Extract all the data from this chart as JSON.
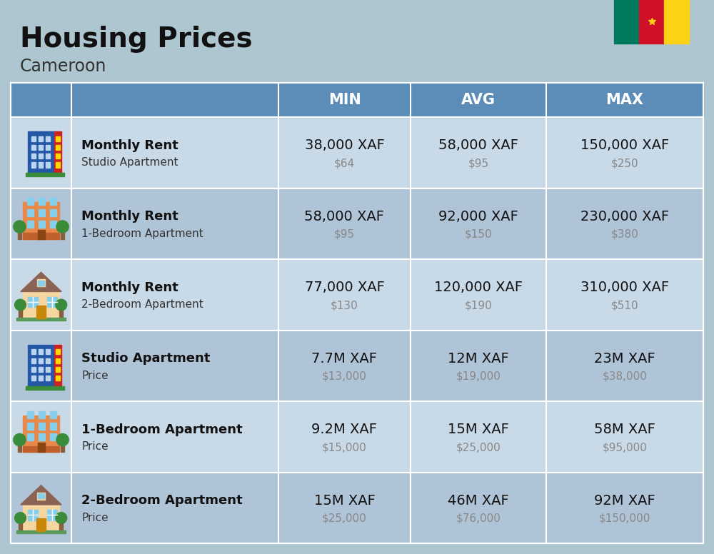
{
  "title": "Housing Prices",
  "subtitle": "Cameroon",
  "bg_color": "#AEC6CF",
  "header_bg": "#5B8DB8",
  "header_text_color": "#FFFFFF",
  "row_bg_light": "#C8D9E8",
  "row_bg_dark": "#B0C4D8",
  "col_headers": [
    "MIN",
    "AVG",
    "MAX"
  ],
  "rows": [
    {
      "icon_type": "blue_office",
      "label_bold": "Monthly Rent",
      "label_sub": "Studio Apartment",
      "min_xaf": "38,000 XAF",
      "min_usd": "$64",
      "avg_xaf": "58,000 XAF",
      "avg_usd": "$95",
      "max_xaf": "150,000 XAF",
      "max_usd": "$250"
    },
    {
      "icon_type": "orange_apt",
      "label_bold": "Monthly Rent",
      "label_sub": "1-Bedroom Apartment",
      "min_xaf": "58,000 XAF",
      "min_usd": "$95",
      "avg_xaf": "92,000 XAF",
      "avg_usd": "$150",
      "max_xaf": "230,000 XAF",
      "max_usd": "$380"
    },
    {
      "icon_type": "tan_house",
      "label_bold": "Monthly Rent",
      "label_sub": "2-Bedroom Apartment",
      "min_xaf": "77,000 XAF",
      "min_usd": "$130",
      "avg_xaf": "120,000 XAF",
      "avg_usd": "$190",
      "max_xaf": "310,000 XAF",
      "max_usd": "$510"
    },
    {
      "icon_type": "blue_office",
      "label_bold": "Studio Apartment",
      "label_sub": "Price",
      "min_xaf": "7.7M XAF",
      "min_usd": "$13,000",
      "avg_xaf": "12M XAF",
      "avg_usd": "$19,000",
      "max_xaf": "23M XAF",
      "max_usd": "$38,000"
    },
    {
      "icon_type": "orange_apt",
      "label_bold": "1-Bedroom Apartment",
      "label_sub": "Price",
      "min_xaf": "9.2M XAF",
      "min_usd": "$15,000",
      "avg_xaf": "15M XAF",
      "avg_usd": "$25,000",
      "max_xaf": "58M XAF",
      "max_usd": "$95,000"
    },
    {
      "icon_type": "tan_house",
      "label_bold": "2-Bedroom Apartment",
      "label_sub": "Price",
      "min_xaf": "15M XAF",
      "min_usd": "$25,000",
      "avg_xaf": "46M XAF",
      "avg_usd": "$76,000",
      "max_xaf": "92M XAF",
      "max_usd": "$150,000"
    }
  ],
  "usd_color": "#888888",
  "flag_green": "#007A5E",
  "flag_red": "#CE1126",
  "flag_yellow": "#FCD116",
  "border_color": "#FFFFFF",
  "title_fontsize": 28,
  "subtitle_fontsize": 17,
  "header_fontsize": 15,
  "cell_xaf_fontsize": 14,
  "cell_usd_fontsize": 11,
  "label_bold_fontsize": 13,
  "label_sub_fontsize": 11
}
